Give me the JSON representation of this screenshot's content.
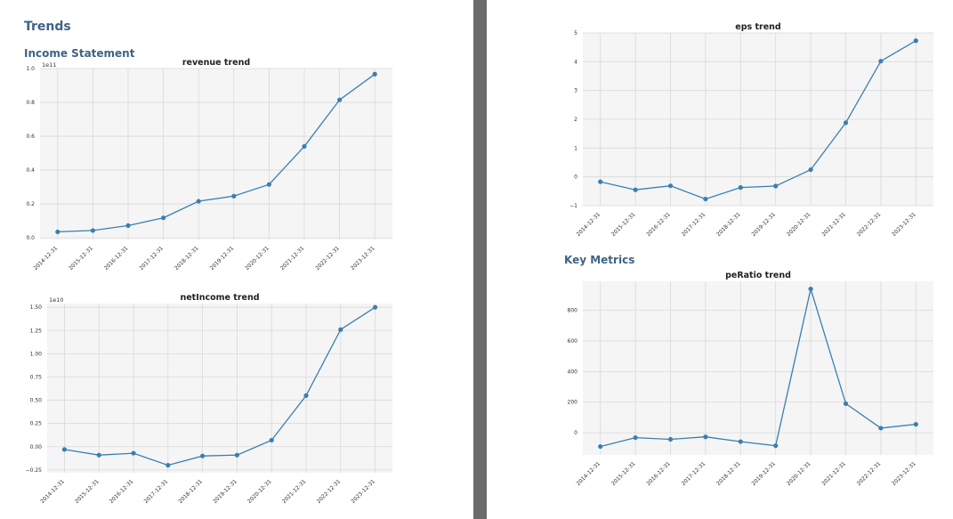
{
  "headings": {
    "trends": "Trends",
    "income_statement": "Income Statement",
    "key_metrics": "Key Metrics"
  },
  "colors": {
    "line": "#3a7fb0",
    "heading": "#3f6384",
    "plot_bg": "#f5f5f5",
    "grid": "#d9d9d9",
    "divider": "#6b6b6b"
  },
  "chart_data": [
    {
      "id": "revenue",
      "type": "line",
      "title": "revenue trend",
      "xlabel": "",
      "ylabel": "",
      "scale_label": "1e11",
      "categories": [
        "2014-12-31",
        "2015-12-31",
        "2016-12-31",
        "2017-12-31",
        "2018-12-31",
        "2019-12-31",
        "2020-12-31",
        "2021-12-31",
        "2022-12-31",
        "2023-12-31"
      ],
      "values": [
        0.035,
        0.043,
        0.072,
        0.118,
        0.216,
        0.246,
        0.315,
        0.54,
        0.815,
        0.967
      ],
      "yticks": [
        0.0,
        0.2,
        0.4,
        0.6,
        0.8,
        1.0
      ],
      "ytick_labels": [
        "0.0",
        "0.2",
        "0.4",
        "0.6",
        "0.8",
        "1.0"
      ],
      "ylim": [
        -0.01,
        1.0
      ],
      "grid": true
    },
    {
      "id": "netincome",
      "type": "line",
      "title": "netIncome trend",
      "xlabel": "",
      "ylabel": "",
      "scale_label": "1e10",
      "categories": [
        "2014-12-31",
        "2015-12-31",
        "2016-12-31",
        "2017-12-31",
        "2018-12-31",
        "2019-12-31",
        "2020-12-31",
        "2021-12-31",
        "2022-12-31",
        "2023-12-31"
      ],
      "values": [
        -0.03,
        -0.09,
        -0.07,
        -0.2,
        -0.1,
        -0.09,
        0.07,
        0.55,
        1.26,
        1.5
      ],
      "yticks": [
        -0.25,
        0.0,
        0.25,
        0.5,
        0.75,
        1.0,
        1.25,
        1.5
      ],
      "ytick_labels": [
        "−0.25",
        "0.00",
        "0.25",
        "0.50",
        "0.75",
        "1.00",
        "1.25",
        "1.50"
      ],
      "ylim": [
        -0.28,
        1.54
      ],
      "grid": true
    },
    {
      "id": "eps",
      "type": "line",
      "title": "eps trend",
      "xlabel": "",
      "ylabel": "",
      "scale_label": "",
      "categories": [
        "2014-12-31",
        "2015-12-31",
        "2016-12-31",
        "2017-12-31",
        "2018-12-31",
        "2019-12-31",
        "2020-12-31",
        "2021-12-31",
        "2022-12-31",
        "2023-12-31"
      ],
      "values": [
        -0.17,
        -0.45,
        -0.31,
        -0.77,
        -0.37,
        -0.32,
        0.25,
        1.88,
        4.02,
        4.73
      ],
      "yticks": [
        -1,
        0,
        1,
        2,
        3,
        4,
        5
      ],
      "ytick_labels": [
        "−1",
        "0",
        "1",
        "2",
        "3",
        "4",
        "5"
      ],
      "ylim": [
        -1,
        5
      ],
      "grid": true
    },
    {
      "id": "peratio",
      "type": "line",
      "title": "peRatio trend",
      "xlabel": "",
      "ylabel": "",
      "scale_label": "",
      "categories": [
        "2014-12-31",
        "2015-12-31",
        "2016-12-31",
        "2017-12-31",
        "2018-12-31",
        "2019-12-31",
        "2020-12-31",
        "2021-12-31",
        "2022-12-31",
        "2023-12-31"
      ],
      "values": [
        -90,
        -32,
        -43,
        -27,
        -58,
        -85,
        940,
        190,
        30,
        55
      ],
      "yticks": [
        0,
        200,
        400,
        600,
        800
      ],
      "ytick_labels": [
        "0",
        "200",
        "400",
        "600",
        "800"
      ],
      "ylim": [
        -145,
        990
      ],
      "grid": true
    }
  ]
}
